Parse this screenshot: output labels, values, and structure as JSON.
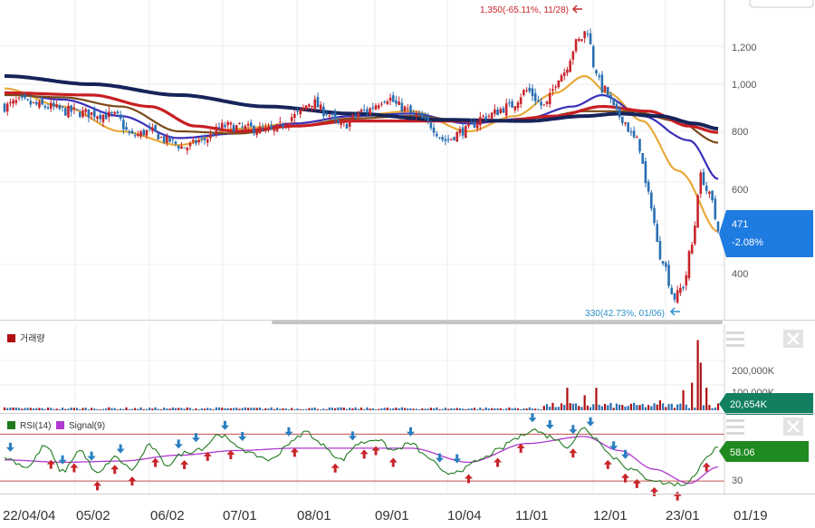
{
  "colors": {
    "up": "#c8252b",
    "down": "#2a6fb3",
    "ma1": "#e8a93a",
    "ma2": "#3a2fb8",
    "ma3": "#7a4a18",
    "ma4": "#c81e22",
    "ma5": "#16245a",
    "price_badge": "#1e7be0",
    "vol_badge": "#128060",
    "rsi_badge": "#1f8a1f",
    "rsi_line": "#1f7a1f",
    "signal_line": "#b03ad0",
    "vol_bar": "#b01010"
  },
  "icons": {
    "menu": "hamburger-icon",
    "close": "close-icon",
    "arrow_left": "arrow-left-icon"
  },
  "price_panel": {
    "y_ticks": [
      "1,200",
      "1,000",
      "800",
      "600",
      "400"
    ],
    "high_annotation": "1,350(-65.11%, 11/28)",
    "low_annotation": "330(42.73%, 01/06)",
    "current_price": "471",
    "current_change": "-2.08%"
  },
  "volume_panel": {
    "legend": "거래량",
    "y_ticks": [
      "200,000K",
      "100,000K"
    ],
    "current_value": "20,654K"
  },
  "rsi_panel": {
    "legend_rsi": "RSI(14)",
    "legend_signal": "Signal(9)",
    "tick_low": "30",
    "current_value": "58.06"
  },
  "x_axis_labels": [
    "22/04/04",
    "05/02",
    "06/02",
    "07/01",
    "08/01",
    "09/01",
    "10/04",
    "11/01",
    "12/01",
    "23/01",
    "01/19"
  ],
  "chart_data": {
    "type": "candlestick",
    "price_range": [
      290,
      1400
    ],
    "moving_average_series": [
      "ma1",
      "ma2",
      "ma3",
      "ma4",
      "ma5"
    ],
    "anchors_close": [
      [
        0,
        900
      ],
      [
        5,
        920
      ],
      [
        14,
        900
      ],
      [
        22,
        880
      ],
      [
        30,
        870
      ],
      [
        38,
        860
      ],
      [
        44,
        780
      ],
      [
        50,
        800
      ],
      [
        56,
        760
      ],
      [
        62,
        730
      ],
      [
        68,
        760
      ],
      [
        76,
        820
      ],
      [
        84,
        810
      ],
      [
        92,
        800
      ],
      [
        100,
        860
      ],
      [
        106,
        920
      ],
      [
        110,
        880
      ],
      [
        116,
        820
      ],
      [
        124,
        880
      ],
      [
        132,
        940
      ],
      [
        136,
        900
      ],
      [
        142,
        860
      ],
      [
        146,
        830
      ],
      [
        152,
        760
      ],
      [
        158,
        800
      ],
      [
        166,
        860
      ],
      [
        174,
        900
      ],
      [
        180,
        970
      ],
      [
        186,
        900
      ],
      [
        192,
        1050
      ],
      [
        198,
        1230
      ],
      [
        201,
        1300
      ],
      [
        203,
        1100
      ],
      [
        206,
        980
      ],
      [
        212,
        860
      ],
      [
        218,
        760
      ],
      [
        222,
        560
      ],
      [
        226,
        420
      ],
      [
        231,
        340
      ],
      [
        234,
        360
      ],
      [
        237,
        440
      ],
      [
        240,
        620
      ],
      [
        243,
        560
      ],
      [
        246,
        481
      ]
    ],
    "ma_anchors": {
      "ma1": [
        [
          0,
          980
        ],
        [
          20,
          900
        ],
        [
          40,
          800
        ],
        [
          60,
          740
        ],
        [
          80,
          810
        ],
        [
          100,
          830
        ],
        [
          120,
          860
        ],
        [
          140,
          880
        ],
        [
          160,
          800
        ],
        [
          176,
          860
        ],
        [
          190,
          960
        ],
        [
          200,
          1040
        ],
        [
          208,
          960
        ],
        [
          220,
          840
        ],
        [
          232,
          640
        ],
        [
          246,
          470
        ]
      ],
      "ma2": [
        [
          0,
          960
        ],
        [
          20,
          930
        ],
        [
          40,
          860
        ],
        [
          60,
          770
        ],
        [
          80,
          790
        ],
        [
          100,
          830
        ],
        [
          120,
          860
        ],
        [
          140,
          870
        ],
        [
          160,
          830
        ],
        [
          180,
          850
        ],
        [
          196,
          900
        ],
        [
          206,
          950
        ],
        [
          220,
          860
        ],
        [
          236,
          760
        ],
        [
          246,
          610
        ]
      ],
      "ma3": [
        [
          0,
          950
        ],
        [
          20,
          940
        ],
        [
          40,
          900
        ],
        [
          60,
          800
        ],
        [
          80,
          790
        ],
        [
          100,
          820
        ],
        [
          120,
          850
        ],
        [
          140,
          860
        ],
        [
          160,
          840
        ],
        [
          180,
          840
        ],
        [
          200,
          880
        ],
        [
          216,
          880
        ],
        [
          232,
          840
        ],
        [
          246,
          750
        ]
      ],
      "ma4": [
        [
          0,
          960
        ],
        [
          30,
          950
        ],
        [
          50,
          900
        ],
        [
          66,
          820
        ],
        [
          80,
          800
        ],
        [
          100,
          820
        ],
        [
          120,
          840
        ],
        [
          150,
          840
        ],
        [
          170,
          840
        ],
        [
          190,
          860
        ],
        [
          206,
          900
        ],
        [
          222,
          880
        ],
        [
          236,
          820
        ],
        [
          246,
          795
        ]
      ],
      "ma5": [
        [
          0,
          1040
        ],
        [
          30,
          1000
        ],
        [
          60,
          950
        ],
        [
          90,
          900
        ],
        [
          120,
          870
        ],
        [
          150,
          845
        ],
        [
          180,
          840
        ],
        [
          200,
          860
        ],
        [
          212,
          870
        ],
        [
          226,
          860
        ],
        [
          238,
          830
        ],
        [
          246,
          810
        ]
      ]
    },
    "volume_spikes": [
      [
        194,
        90000
      ],
      [
        200,
        60000
      ],
      [
        204,
        90000
      ],
      [
        226,
        40000
      ],
      [
        234,
        80000
      ],
      [
        237,
        110000
      ],
      [
        239,
        280000
      ],
      [
        240,
        190000
      ],
      [
        242,
        90000
      ]
    ],
    "volume_range": [
      0,
      300000
    ],
    "rsi_range": [
      20,
      85
    ],
    "rsi_bands": [
      30,
      70
    ],
    "rsi_anchors": [
      [
        0,
        50
      ],
      [
        8,
        42
      ],
      [
        14,
        60
      ],
      [
        20,
        38
      ],
      [
        26,
        56
      ],
      [
        32,
        36
      ],
      [
        38,
        50
      ],
      [
        44,
        40
      ],
      [
        50,
        60
      ],
      [
        56,
        44
      ],
      [
        62,
        54
      ],
      [
        68,
        58
      ],
      [
        74,
        70
      ],
      [
        80,
        60
      ],
      [
        86,
        52
      ],
      [
        92,
        48
      ],
      [
        98,
        62
      ],
      [
        104,
        72
      ],
      [
        110,
        60
      ],
      [
        116,
        48
      ],
      [
        122,
        62
      ],
      [
        128,
        66
      ],
      [
        134,
        56
      ],
      [
        140,
        62
      ],
      [
        146,
        50
      ],
      [
        152,
        36
      ],
      [
        158,
        40
      ],
      [
        164,
        48
      ],
      [
        170,
        56
      ],
      [
        176,
        66
      ],
      [
        182,
        74
      ],
      [
        188,
        68
      ],
      [
        194,
        60
      ],
      [
        200,
        75
      ],
      [
        204,
        66
      ],
      [
        210,
        50
      ],
      [
        216,
        40
      ],
      [
        222,
        32
      ],
      [
        228,
        28
      ],
      [
        234,
        27
      ],
      [
        238,
        34
      ],
      [
        242,
        52
      ],
      [
        246,
        58
      ]
    ],
    "signal_anchors": [
      [
        0,
        48
      ],
      [
        20,
        46
      ],
      [
        40,
        47
      ],
      [
        60,
        52
      ],
      [
        80,
        56
      ],
      [
        100,
        58
      ],
      [
        120,
        58
      ],
      [
        140,
        58
      ],
      [
        160,
        46
      ],
      [
        180,
        62
      ],
      [
        200,
        68
      ],
      [
        212,
        56
      ],
      [
        224,
        40
      ],
      [
        236,
        28
      ],
      [
        246,
        42
      ]
    ],
    "buy_markers": [
      16,
      24,
      32,
      38,
      44,
      52,
      62,
      70,
      78,
      100,
      114,
      124,
      128,
      134,
      160,
      170,
      178,
      196,
      208,
      214,
      218,
      224,
      232,
      242
    ],
    "sell_markers": [
      2,
      20,
      30,
      40,
      60,
      66,
      76,
      82,
      98,
      120,
      140,
      150,
      156,
      182,
      188,
      196,
      202,
      210,
      214
    ],
    "high": {
      "label": "1,350(-65.11%, 11/28)",
      "value": 1350
    },
    "low": {
      "label": "330(42.73%, 01/06)",
      "value": 330
    },
    "last": 471,
    "last_change": "-2.08%"
  }
}
